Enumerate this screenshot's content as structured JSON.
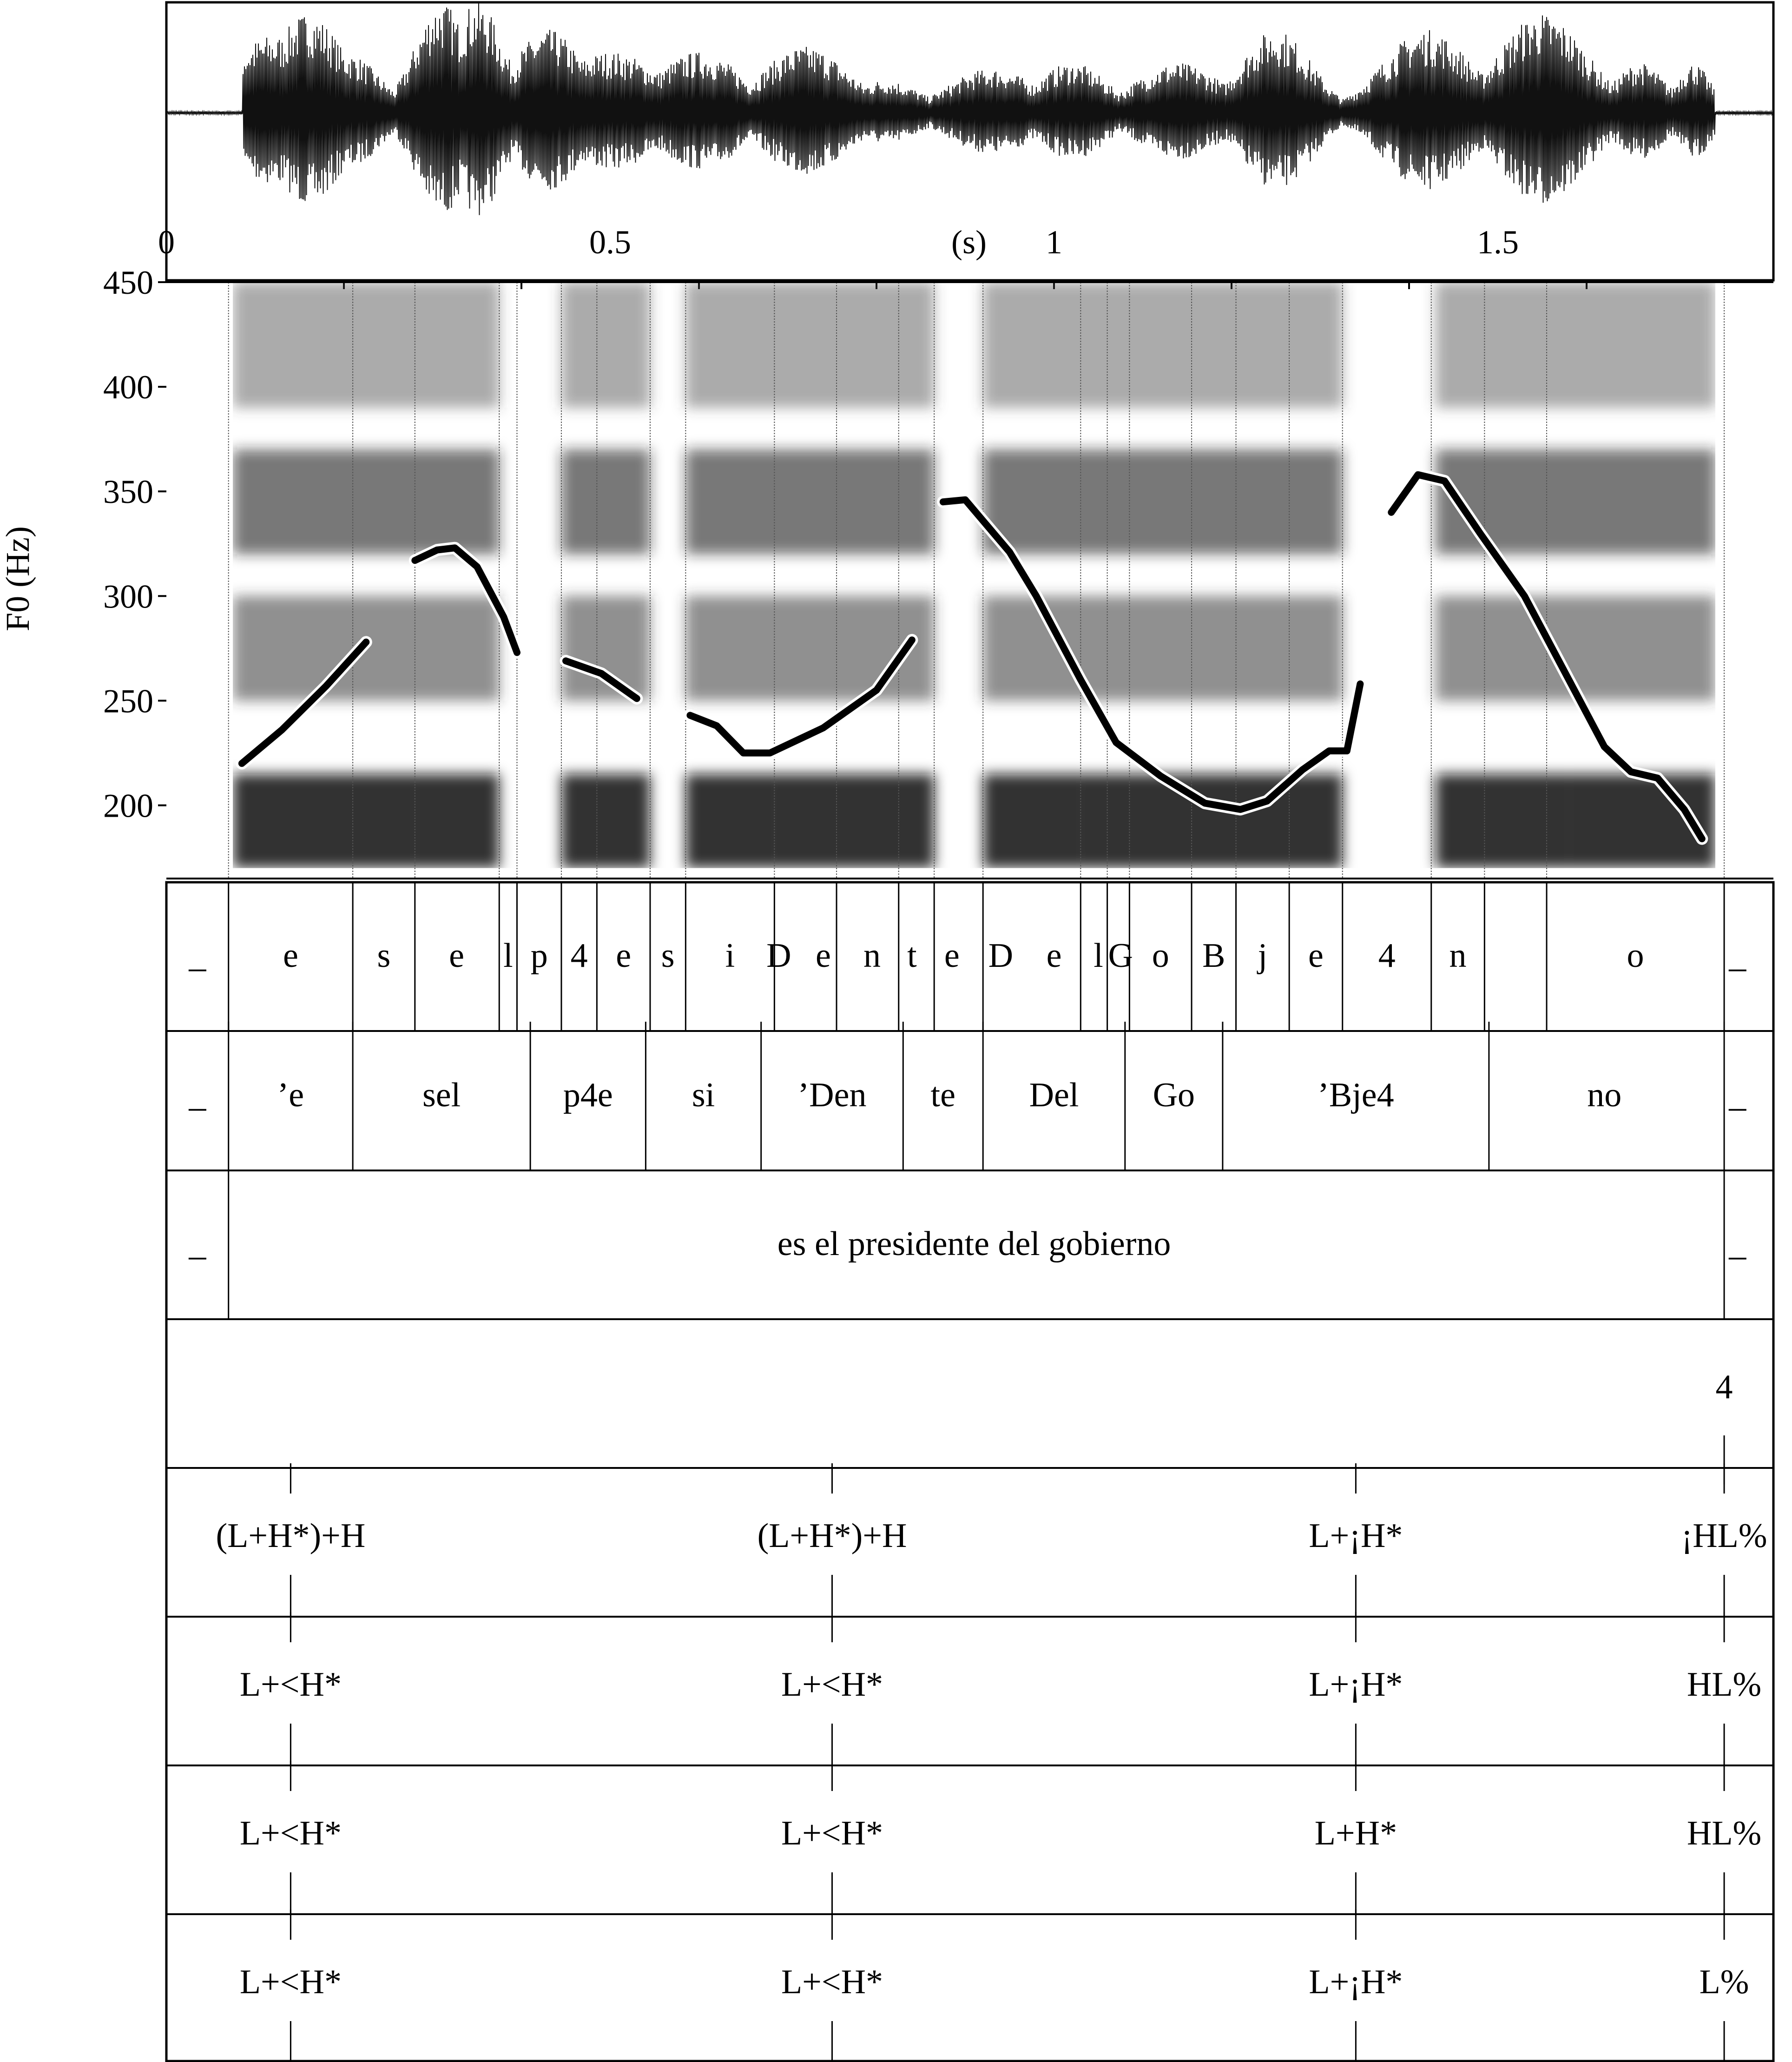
{
  "waveform": {
    "time_axis": {
      "unit_label": "(s)",
      "ticks": [
        {
          "value": 0,
          "label": "0"
        },
        {
          "value": 0.5,
          "label": "0.5"
        },
        {
          "value": 1,
          "label": "1"
        },
        {
          "value": 1.5,
          "label": "1.5"
        }
      ],
      "range": [
        0,
        1.79
      ]
    }
  },
  "chart_data": {
    "type": "line",
    "ylabel": "F0 (Hz)",
    "ylim": [
      165,
      450
    ],
    "xlim": [
      0,
      1.79
    ],
    "yticks": [
      {
        "value": 450,
        "label": "450"
      },
      {
        "value": 400,
        "label": "400"
      },
      {
        "value": 350,
        "label": "350"
      },
      {
        "value": 300,
        "label": "300"
      },
      {
        "value": 250,
        "label": "250"
      },
      {
        "value": 200,
        "label": "200"
      }
    ],
    "grid": false,
    "series": [
      {
        "name": "",
        "points": [
          [
            0.085,
            220
          ],
          [
            0.13,
            236
          ],
          [
            0.18,
            257
          ],
          [
            0.225,
            278
          ]
        ]
      },
      {
        "name": "",
        "points": [
          [
            0.28,
            317
          ],
          [
            0.305,
            322
          ],
          [
            0.325,
            323
          ],
          [
            0.35,
            314
          ],
          [
            0.38,
            290
          ],
          [
            0.395,
            273
          ]
        ]
      },
      {
        "name": "",
        "points": [
          [
            0.45,
            269
          ],
          [
            0.49,
            263
          ],
          [
            0.53,
            251
          ]
        ]
      },
      {
        "name": "",
        "points": [
          [
            0.59,
            243
          ],
          [
            0.62,
            238
          ],
          [
            0.65,
            225
          ],
          [
            0.68,
            225
          ],
          [
            0.74,
            237
          ],
          [
            0.8,
            255
          ],
          [
            0.84,
            279
          ]
        ]
      },
      {
        "name": "",
        "points": [
          [
            0.875,
            345
          ],
          [
            0.9,
            346
          ],
          [
            0.95,
            321
          ],
          [
            0.98,
            300
          ],
          [
            1.03,
            260
          ],
          [
            1.07,
            230
          ],
          [
            1.12,
            214
          ],
          [
            1.17,
            201
          ],
          [
            1.21,
            198
          ],
          [
            1.24,
            202
          ],
          [
            1.28,
            217
          ],
          [
            1.31,
            226
          ],
          [
            1.33,
            226
          ],
          [
            1.345,
            258
          ]
        ]
      },
      {
        "name": "",
        "points": [
          [
            1.38,
            340
          ],
          [
            1.41,
            358
          ],
          [
            1.44,
            355
          ],
          [
            1.48,
            330
          ],
          [
            1.53,
            300
          ],
          [
            1.58,
            260
          ],
          [
            1.62,
            228
          ],
          [
            1.65,
            216
          ],
          [
            1.68,
            213
          ],
          [
            1.71,
            198
          ],
          [
            1.73,
            184
          ]
        ]
      }
    ]
  },
  "tiers": {
    "phones": {
      "boundaries": [
        0.07,
        0.21,
        0.28,
        0.375,
        0.395,
        0.445,
        0.485,
        0.545,
        0.585,
        0.685,
        0.755,
        0.825,
        0.865,
        0.92,
        1.03,
        1.06,
        1.085,
        1.155,
        1.205,
        1.265,
        1.325,
        1.425,
        1.485,
        1.555,
        1.755
      ],
      "labels": [
        {
          "text": "_",
          "x": 0.035
        },
        {
          "text": "e",
          "x": 0.14
        },
        {
          "text": "s",
          "x": 0.245
        },
        {
          "text": "e",
          "x": 0.327
        },
        {
          "text": "l",
          "x": 0.385
        },
        {
          "text": "p",
          "x": 0.42
        },
        {
          "text": "4",
          "x": 0.465
        },
        {
          "text": "e",
          "x": 0.515
        },
        {
          "text": "s",
          "x": 0.565
        },
        {
          "text": "i",
          "x": 0.635
        },
        {
          "text": "D",
          "x": 0.69
        },
        {
          "text": "e",
          "x": 0.74
        },
        {
          "text": "n",
          "x": 0.795
        },
        {
          "text": "t",
          "x": 0.84
        },
        {
          "text": "e",
          "x": 0.885
        },
        {
          "text": "D",
          "x": 0.94
        },
        {
          "text": "e",
          "x": 1.0
        },
        {
          "text": "l",
          "x": 1.05
        },
        {
          "text": "G",
          "x": 1.075
        },
        {
          "text": "o",
          "x": 1.12
        },
        {
          "text": "B",
          "x": 1.18
        },
        {
          "text": "j",
          "x": 1.235
        },
        {
          "text": "e",
          "x": 1.295
        },
        {
          "text": "4",
          "x": 1.375
        },
        {
          "text": "n",
          "x": 1.455
        },
        {
          "text": "o",
          "x": 1.655
        },
        {
          "text": "_",
          "x": 1.77
        }
      ]
    },
    "syllables": {
      "boundaries": [
        0.07,
        0.21,
        0.41,
        0.54,
        0.67,
        0.83,
        0.92,
        1.08,
        1.19,
        1.49,
        1.755
      ],
      "labels": [
        {
          "text": "_",
          "x": 0.035
        },
        {
          "text": "’e",
          "x": 0.14
        },
        {
          "text": "sel",
          "x": 0.31
        },
        {
          "text": "p4e",
          "x": 0.475
        },
        {
          "text": "si",
          "x": 0.605
        },
        {
          "text": "’Den",
          "x": 0.75
        },
        {
          "text": "te",
          "x": 0.875
        },
        {
          "text": "Del",
          "x": 1.0
        },
        {
          "text": "Go",
          "x": 1.135
        },
        {
          "text": "’Bje4",
          "x": 1.34
        },
        {
          "text": "no",
          "x": 1.62
        },
        {
          "text": "_",
          "x": 1.77
        }
      ]
    },
    "words": {
      "boundaries": [
        0.07,
        1.755
      ],
      "labels": [
        {
          "text": "_",
          "x": 0.035
        },
        {
          "text": "es el presidente del gobierno",
          "x": 0.91
        },
        {
          "text": "_",
          "x": 1.77
        }
      ]
    },
    "break_indices": {
      "labels": [
        {
          "text": "4",
          "x": 1.755
        }
      ]
    },
    "tones": [
      {
        "labels": [
          {
            "text": "(L+H*)+H",
            "x": 0.14
          },
          {
            "text": "(L+H*)+H",
            "x": 0.75
          },
          {
            "text": "L+¡H*",
            "x": 1.34
          },
          {
            "text": "¡HL%",
            "x": 1.755
          }
        ]
      },
      {
        "labels": [
          {
            "text": "L+<H*",
            "x": 0.14
          },
          {
            "text": "L+<H*",
            "x": 0.75
          },
          {
            "text": "L+¡H*",
            "x": 1.34
          },
          {
            "text": "HL%",
            "x": 1.755
          }
        ]
      },
      {
        "labels": [
          {
            "text": "L+<H*",
            "x": 0.14
          },
          {
            "text": "L+<H*",
            "x": 0.75
          },
          {
            "text": "L+H*",
            "x": 1.34
          },
          {
            "text": "HL%",
            "x": 1.755
          }
        ]
      },
      {
        "labels": [
          {
            "text": "L+<H*",
            "x": 0.14
          },
          {
            "text": "L+<H*",
            "x": 0.75
          },
          {
            "text": "L+¡H*",
            "x": 1.34
          },
          {
            "text": "L%",
            "x": 1.755
          }
        ]
      }
    ]
  }
}
